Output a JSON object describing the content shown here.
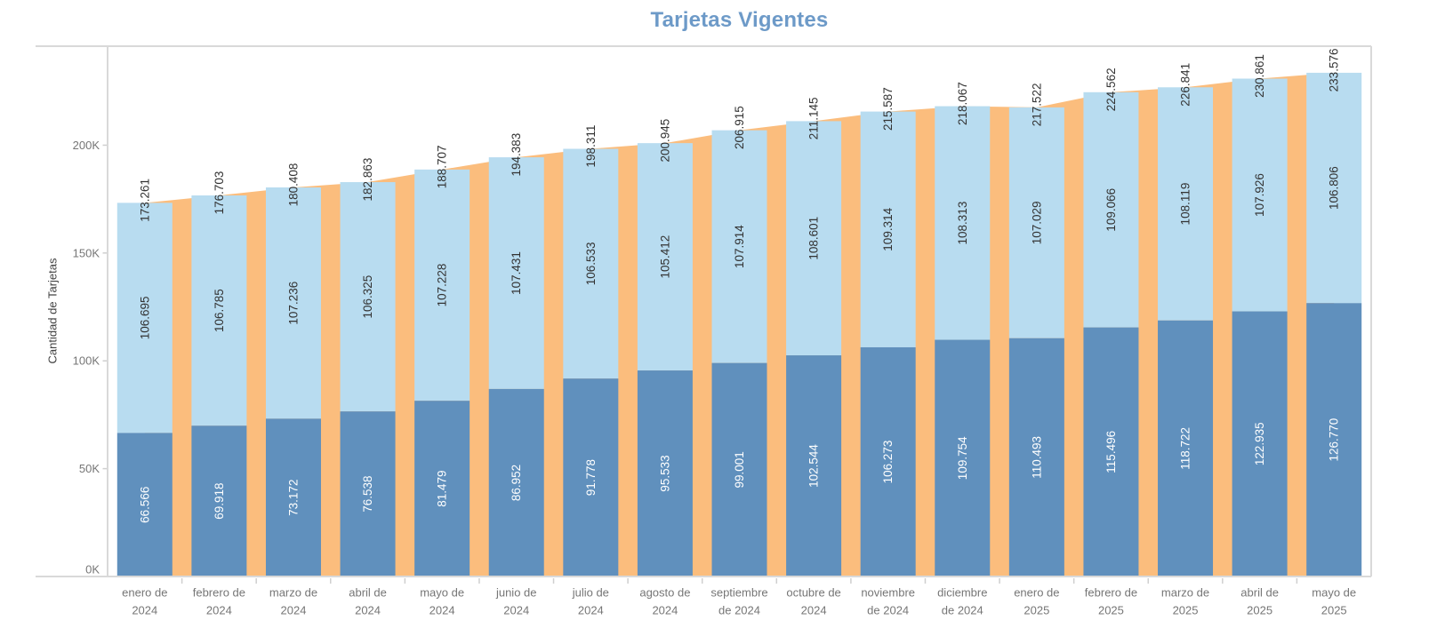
{
  "title": "Tarjetas Vigentes",
  "colors": {
    "title_text": "#6d9ac8",
    "bar_bottom": "#6090bd",
    "bar_top": "#b8dcf0",
    "area_total": "#fbbd7d",
    "label_dark": "#333333",
    "label_on_dark_bar": "#ffffff",
    "axis_tick_text": "#767676",
    "axis_title_text": "#424242",
    "axis_line": "#d9d9d9",
    "tick_mark": "#cfcfcf"
  },
  "y_axis": {
    "title": "Cantidad de Tarjetas",
    "tick_labels": [
      "0K",
      "50K",
      "100K",
      "150K",
      "200K"
    ],
    "tick_values": [
      0,
      50000,
      100000,
      150000,
      200000
    ]
  },
  "chart_data": {
    "type": "bar",
    "subtype": "stacked-bars-with-total-area-behind",
    "title": "Tarjetas Vigentes",
    "xlabel": "",
    "ylabel": "Cantidad de Tarjetas",
    "grid": false,
    "legend": "none",
    "label_format": "thousands-dot-separator",
    "ylim": [
      0,
      245900
    ],
    "yticks": [
      0,
      50000,
      100000,
      150000,
      200000
    ],
    "categories": [
      "enero de 2024",
      "febrero de 2024",
      "marzo de 2024",
      "abril de 2024",
      "mayo de 2024",
      "junio de 2024",
      "julio de 2024",
      "agosto de 2024",
      "septiembre de 2024",
      "octubre de 2024",
      "noviembre de 2024",
      "diciembre de 2024",
      "enero de 2025",
      "febrero de 2025",
      "marzo de 2025",
      "abril de 2025",
      "mayo de 2025"
    ],
    "categories_two_line": [
      [
        "enero de",
        "2024"
      ],
      [
        "febrero de",
        "2024"
      ],
      [
        "marzo de",
        "2024"
      ],
      [
        "abril de",
        "2024"
      ],
      [
        "mayo de",
        "2024"
      ],
      [
        "junio de",
        "2024"
      ],
      [
        "julio de",
        "2024"
      ],
      [
        "agosto de",
        "2024"
      ],
      [
        "septiembre",
        "de 2024"
      ],
      [
        "octubre de",
        "2024"
      ],
      [
        "noviembre",
        "de 2024"
      ],
      [
        "diciembre",
        "de 2024"
      ],
      [
        "enero de",
        "2025"
      ],
      [
        "febrero de",
        "2025"
      ],
      [
        "marzo de",
        "2025"
      ],
      [
        "abril de",
        "2025"
      ],
      [
        "mayo de",
        "2025"
      ]
    ],
    "series": [
      {
        "name": "segment-bottom-dark-blue",
        "values": [
          66566,
          69918,
          73172,
          76538,
          81479,
          86952,
          91778,
          95533,
          99001,
          102544,
          106273,
          109754,
          110493,
          115496,
          118722,
          122935,
          126770
        ]
      },
      {
        "name": "segment-top-light-blue",
        "values": [
          106695,
          106785,
          107236,
          106325,
          107228,
          107431,
          106533,
          105412,
          107914,
          108601,
          109314,
          108313,
          107029,
          109066,
          108119,
          107926,
          106806
        ]
      }
    ],
    "totals": [
      173261,
      176703,
      180408,
      182863,
      188707,
      194383,
      198311,
      200945,
      206915,
      211145,
      215587,
      218067,
      217522,
      224562,
      226841,
      230861,
      233576
    ]
  }
}
